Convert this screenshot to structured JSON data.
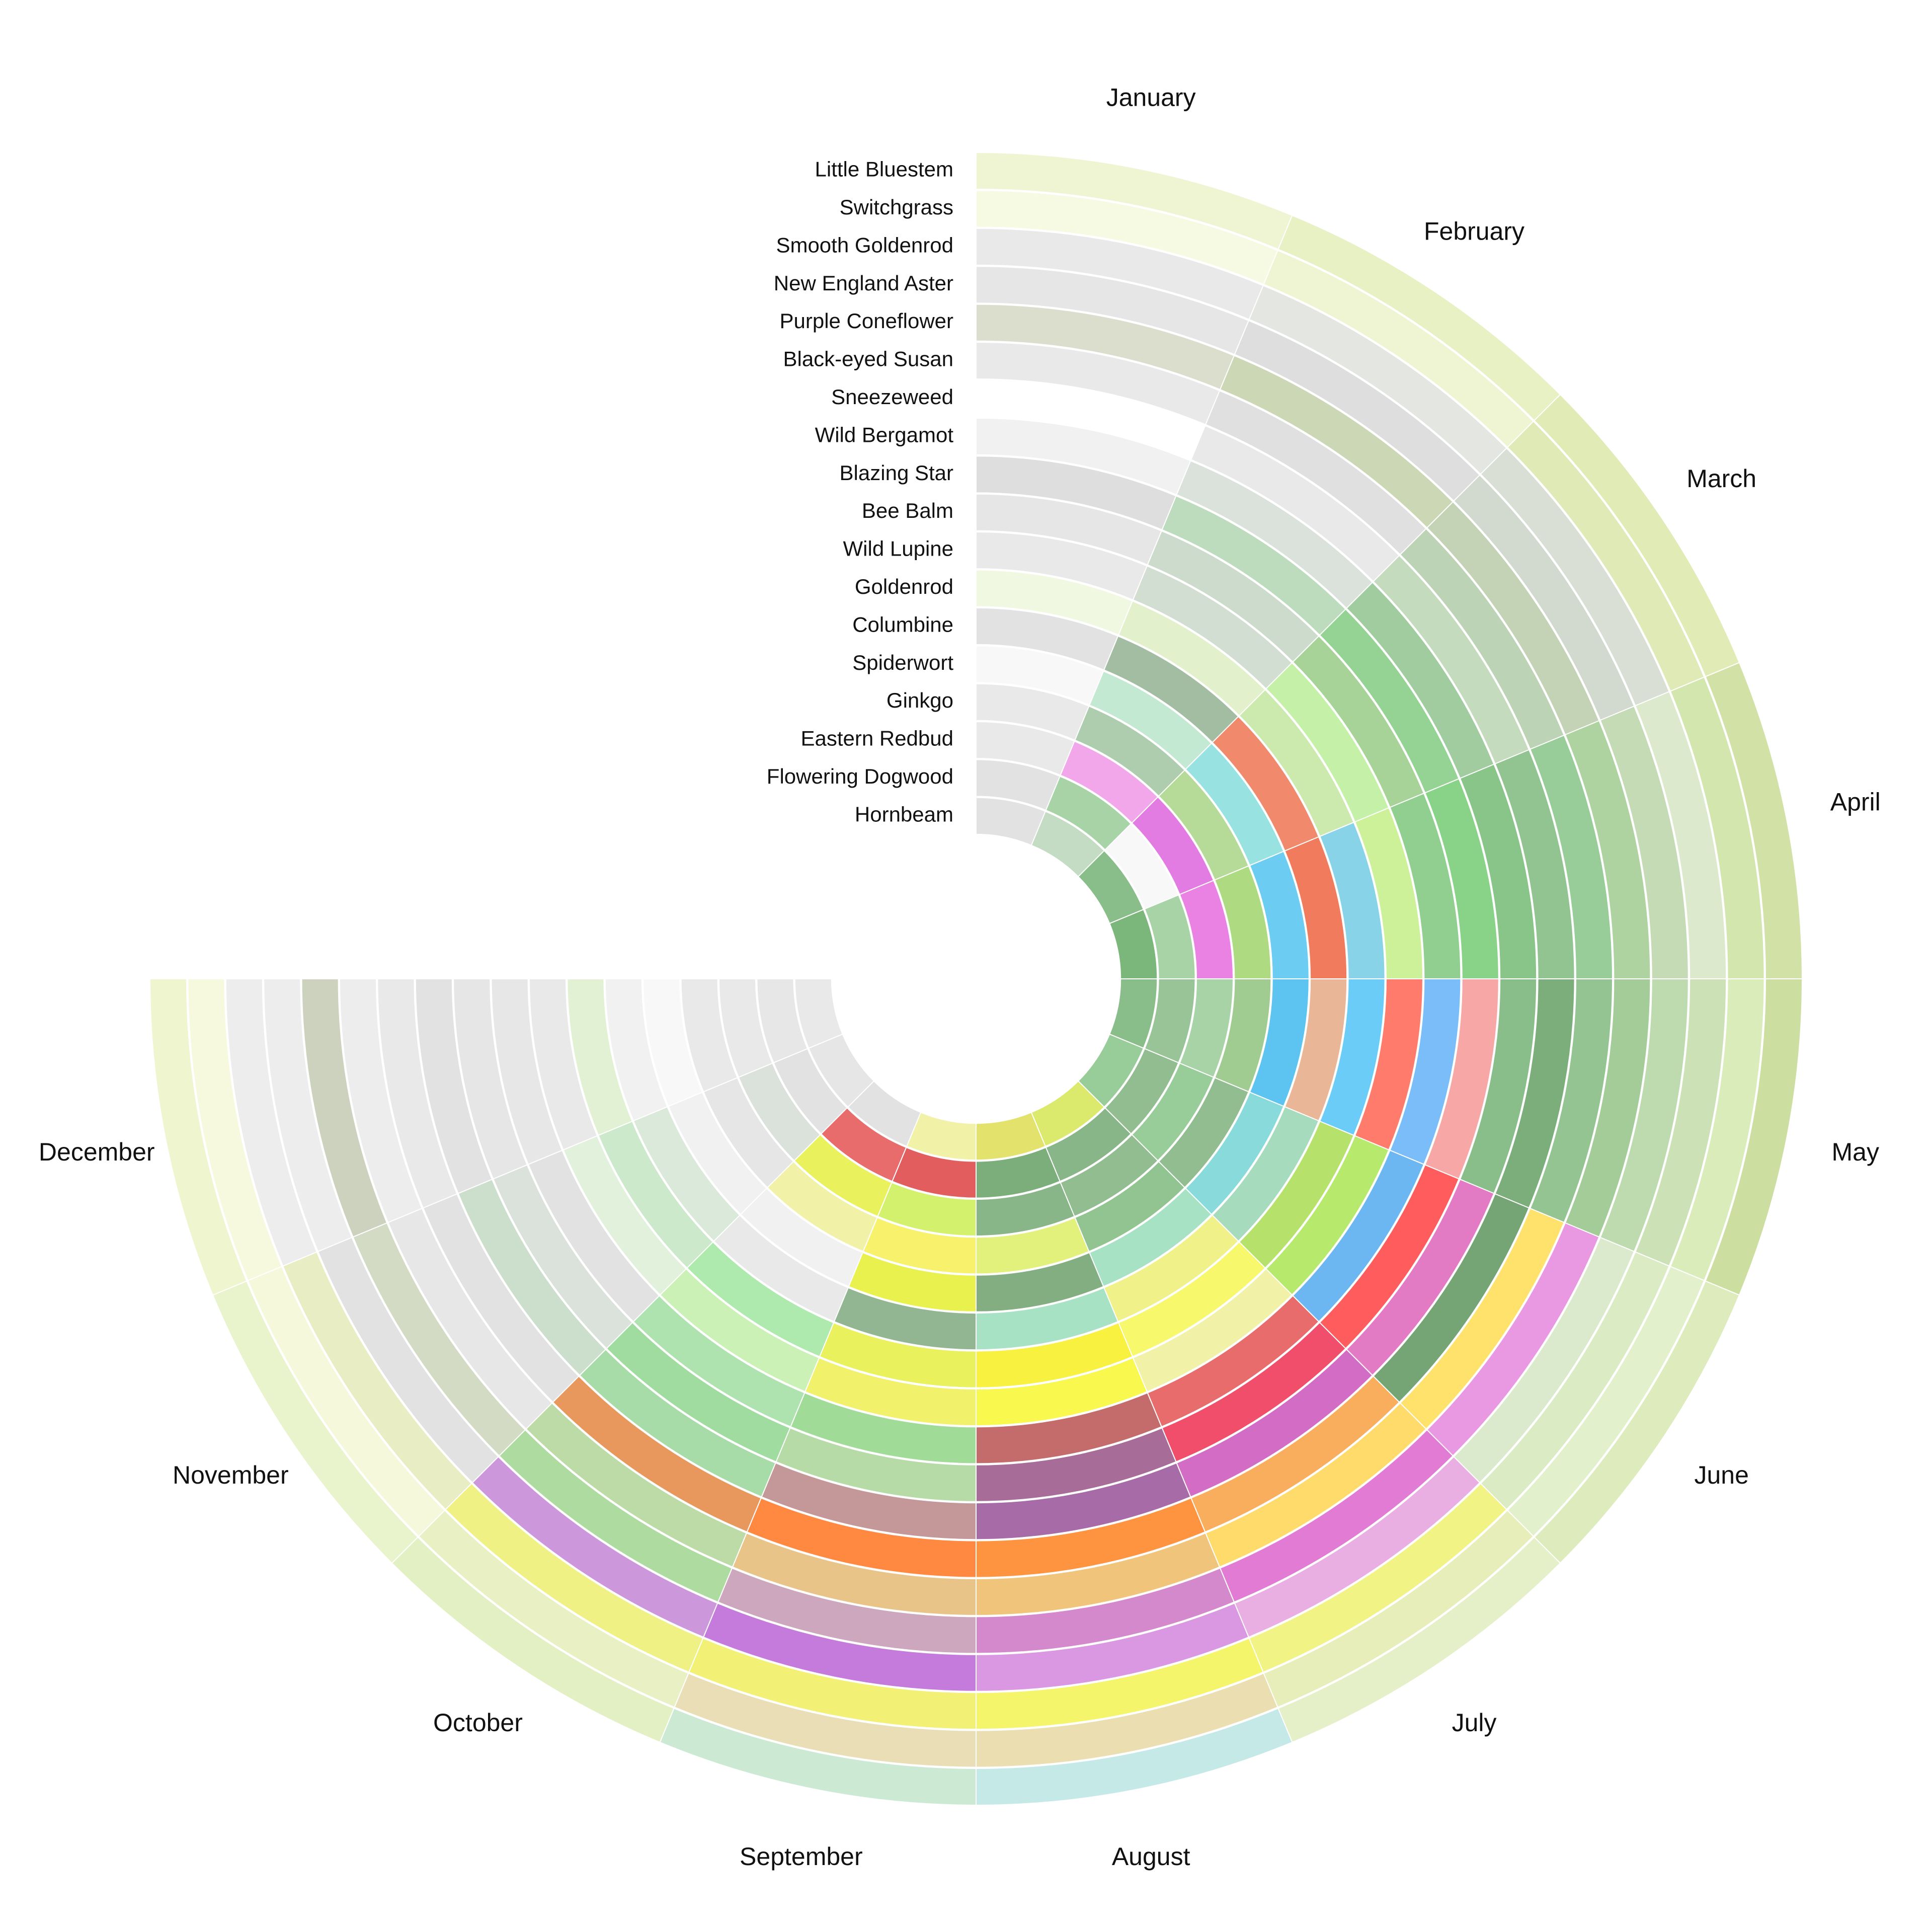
{
  "months": [
    "January",
    "February",
    "March",
    "April",
    "May",
    "June",
    "July",
    "August",
    "September",
    "October",
    "November",
    "December"
  ],
  "plants": [
    {
      "name": "Little Bluestem",
      "colors": [
        "#eef5d0",
        "#e6f0c0",
        "#dfeab0",
        "#cfe0a0",
        "#c8dc98",
        "#dcebb8",
        "#e4efc4",
        "#bfe8e5",
        "#c8e8d0",
        "#e0efc0",
        "#e8f2c8",
        "#eef5cc"
      ]
    },
    {
      "name": "Switchgrass",
      "colors": [
        "#f6fae0",
        "#eef5cf",
        "#dde9b0",
        "#cfe4a8",
        "#d7ebb5",
        "#e0efc8",
        "#e6edb4",
        "#eadcaa",
        "#e8dcb0",
        "#e8f0c0",
        "#f5f8d8",
        "#f6f9dc"
      ]
    },
    {
      "name": "Smooth Goldenrod",
      "colors": [
        "#e8e8e8",
        "#e2e4e0",
        "#d6ddd2",
        "#dbe8c8",
        "#c8e0b0",
        "#d8ebc0",
        "#f0f27a",
        "#f5f560",
        "#f2f06a",
        "#eef07a",
        "#e8ecc0",
        "#ececec"
      ]
    },
    {
      "name": "New England Aster",
      "colors": [
        "#e4e4e4",
        "#dcdcdc",
        "#cfd6cc",
        "#c0d8b0",
        "#b8d8a8",
        "#d8e8c8",
        "#e8a8e0",
        "#d890e0",
        "#c070d8",
        "#c890d8",
        "#e0e0e0",
        "#ececec"
      ]
    },
    {
      "name": "Purple Coneflower",
      "colors": [
        "#d8dcc8",
        "#c8d4b0",
        "#c0d0b0",
        "#a8d098",
        "#9cc890",
        "#e890e0",
        "#e070d0",
        "#d080c8",
        "#c8a0b8",
        "#a8d898",
        "#d0d8c0",
        "#c8cfb8"
      ]
    },
    {
      "name": "Black-eyed Susan",
      "colors": [
        "#e8e8e8",
        "#dedede",
        "#b8d0b0",
        "#90c890",
        "#8cc088",
        "#ffe060",
        "#ffd860",
        "#f0c070",
        "#e8c080",
        "#b8d8a0",
        "#e6e6e6",
        "#ececec"
      ]
    },
    {
      "name": "Sneezeweed",
      "colors": [
        "#ffffff",
        "#e8e8e8",
        "#c0d8b8",
        "#88c088",
        "#70a870",
        "#6a9e6a",
        "#f8a850",
        "#ff8c30",
        "#ff8030",
        "#e89050",
        "#e0e0e0",
        "#e8e8e8"
      ]
    },
    {
      "name": "Wild Bergamot",
      "colors": [
        "#f0f0f0",
        "#d8e0d8",
        "#98c898",
        "#80c080",
        "#80b880",
        "#e070c0",
        "#d060c0",
        "#a060a0",
        "#c09090",
        "#a0d8a0",
        "#c8dcc8",
        "#e0e0e0"
      ]
    },
    {
      "name": "Blazing Star",
      "colors": [
        "#dcdcdc",
        "#b8d8b8",
        "#8cd08c",
        "#80d080",
        "#f8a0a0",
        "#ff5050",
        "#f04060",
        "#a06090",
        "#b0d8a0",
        "#98d898",
        "#d8e0d8",
        "#e4e4e4"
      ]
    },
    {
      "name": "Bee Balm",
      "colors": [
        "#e4e4e4",
        "#c8d8c8",
        "#a0d090",
        "#88cc88",
        "#70b8f8",
        "#60b0f0",
        "#e86060",
        "#c06060",
        "#98d890",
        "#a8e0a8",
        "#e0e0e0",
        "#e6e6e6"
      ]
    },
    {
      "name": "Wild Lupine",
      "colors": [
        "#e8e8e8",
        "#d0dcd0",
        "#c0f0a0",
        "#c8f090",
        "#ff7060",
        "#b0e860",
        "#f0f0a0",
        "#f8f840",
        "#f0f060",
        "#c8f0b0",
        "#e0f0d8",
        "#e8e8e8"
      ]
    },
    {
      "name": "Goldenrod",
      "colors": [
        "#f0f8e0",
        "#e0f0c8",
        "#c8e8a8",
        "#80d0e8",
        "#60c8f8",
        "#b0e060",
        "#f8f860",
        "#f8f030",
        "#e8f050",
        "#a8e8a8",
        "#c8e8c8",
        "#e0f0d0"
      ]
    },
    {
      "name": "Columbine",
      "colors": [
        "#e0e0e0",
        "#9cb89c",
        "#f08060",
        "#f07050",
        "#e8b090",
        "#a0d8b8",
        "#f0f080",
        "#a0e0c0",
        "#88b088",
        "#e8e8e8",
        "#d8e8d8",
        "#f0f0f0"
      ]
    },
    {
      "name": "Spiderwort",
      "colors": [
        "#f8f8f8",
        "#c0e8d0",
        "#90e0e0",
        "#60c8f0",
        "#50c0f0",
        "#80d8d8",
        "#a0e0c0",
        "#78a878",
        "#e8f040",
        "#f0f0f0",
        "#f0f0f0",
        "#f8f8f8"
      ]
    },
    {
      "name": "Ginkgo",
      "colors": [
        "#e8e8e8",
        "#a8c8a8",
        "#b0d890",
        "#a8d878",
        "#98c888",
        "#88b888",
        "#88c088",
        "#e0f070",
        "#f8f060",
        "#f0f0a0",
        "#e4e4e4",
        "#e8e8e8"
      ]
    },
    {
      "name": "Eastern Redbud",
      "colors": [
        "#e8e8e8",
        "#f0a0e8",
        "#e070e0",
        "#e878e0",
        "#a0d0a0",
        "#90c890",
        "#88b888",
        "#80b080",
        "#d0f060",
        "#e8f050",
        "#d8e0d8",
        "#e8e8e8"
      ]
    },
    {
      "name": "Flowering Dogwood",
      "colors": [
        "#e0e0e0",
        "#a0d0a0",
        "#f8f8f8",
        "#a0d0a0",
        "#90c090",
        "#88b888",
        "#80b080",
        "#70a870",
        "#e05050",
        "#e86060",
        "#e0e0e0",
        "#e6e6e6"
      ]
    },
    {
      "name": "Hornbeam",
      "colors": [
        "#e0e0e0",
        "#c0d8c0",
        "#80b880",
        "#70b070",
        "#80b880",
        "#90c890",
        "#d8e860",
        "#e0e060",
        "#f0f0a0",
        "#e0e0e0",
        "#e4e4e4",
        "#e8e8e8"
      ]
    }
  ]
}
